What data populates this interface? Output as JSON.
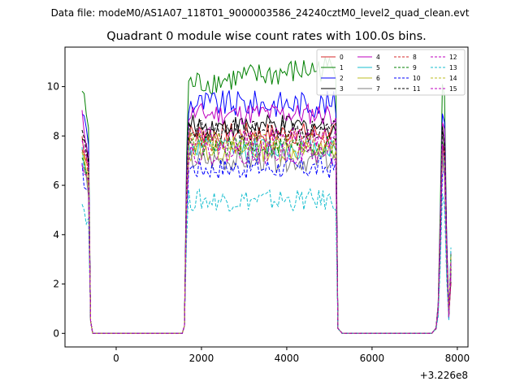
{
  "chart_data": {
    "type": "line",
    "suptitle": "Data file: modeM0/AS1A07_118T01_9000003586_24240cztM0_level2_quad_clean.evt",
    "title": "Quadrant 0 module wise count rates with 100.0s bins.",
    "xlabel": "",
    "ylabel": "",
    "x_offset_label": "+3.226e8",
    "xlim": [
      -1200,
      8250
    ],
    "ylim": [
      -0.55,
      11.6
    ],
    "x_ticks": [
      0,
      2000,
      4000,
      6000,
      8000
    ],
    "x_tick_labels": [
      "0",
      "2000",
      "4000",
      "6000",
      "8000"
    ],
    "y_ticks": [
      0,
      2,
      4,
      6,
      8,
      10
    ],
    "y_tick_labels": [
      "0",
      "2",
      "4",
      "6",
      "8",
      "10"
    ],
    "grid": false,
    "legend_position": "top-right",
    "legend_columns": 4,
    "segments": [
      {
        "x_start": -800,
        "x_end": -600,
        "step": 50,
        "pattern": "high"
      },
      {
        "x_start": -550,
        "x_end": 1550,
        "step": 100,
        "pattern": "zero"
      },
      {
        "x_start": 1600,
        "x_end": 5200,
        "step": 50,
        "pattern": "plateau"
      },
      {
        "x_start": 5300,
        "x_end": 7400,
        "step": 100,
        "pattern": "zero"
      },
      {
        "x_start": 7450,
        "x_end": 7850,
        "step": 50,
        "pattern": "peak"
      }
    ],
    "series": [
      {
        "name": "0",
        "color": "#d62728",
        "dash": "solid",
        "level": 8.1
      },
      {
        "name": "1",
        "color": "#008000",
        "dash": "solid",
        "level": 10.1
      },
      {
        "name": "2",
        "color": "#0000ff",
        "dash": "solid",
        "level": 9.3
      },
      {
        "name": "3",
        "color": "#000000",
        "dash": "solid",
        "level": 8.4
      },
      {
        "name": "4",
        "color": "#bf00bf",
        "dash": "solid",
        "level": 8.9
      },
      {
        "name": "5",
        "color": "#17becf",
        "dash": "solid",
        "level": 7.5
      },
      {
        "name": "6",
        "color": "#bcbd22",
        "dash": "solid",
        "level": 7.4
      },
      {
        "name": "7",
        "color": "#7f7f7f",
        "dash": "solid",
        "level": 7.0
      },
      {
        "name": "8",
        "color": "#d62728",
        "dash": "dashed",
        "level": 7.8
      },
      {
        "name": "9",
        "color": "#008000",
        "dash": "dashed",
        "level": 7.6
      },
      {
        "name": "10",
        "color": "#0000ff",
        "dash": "dashed",
        "level": 6.7
      },
      {
        "name": "11",
        "color": "#000000",
        "dash": "dashed",
        "level": 8.2
      },
      {
        "name": "12",
        "color": "#bf00bf",
        "dash": "dashed",
        "level": 7.9
      },
      {
        "name": "13",
        "color": "#17becf",
        "dash": "dashed",
        "level": 5.4
      },
      {
        "name": "14",
        "color": "#bcbd22",
        "dash": "dashed",
        "level": 7.7
      },
      {
        "name": "15",
        "color": "#bf00bf",
        "dash": "dashed",
        "level": 7.3
      }
    ]
  }
}
